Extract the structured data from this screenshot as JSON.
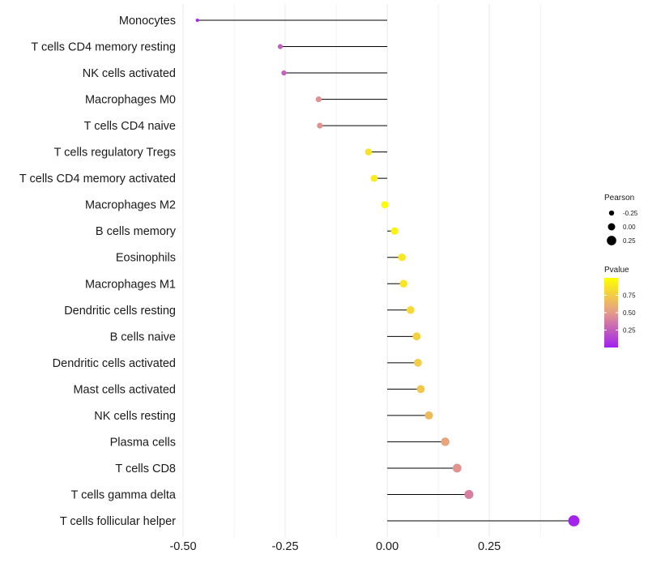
{
  "chart_data": {
    "type": "lollipop",
    "title": "",
    "xlabel": "",
    "ylabel": "",
    "xlim": [
      -0.5,
      0.46
    ],
    "xticks": [
      -0.5,
      -0.25,
      0.0,
      0.25
    ],
    "xtick_labels": [
      "-0.50",
      "-0.25",
      "0.00",
      "0.25"
    ],
    "grid": true,
    "categories": [
      "Monocytes",
      "T cells CD4 memory resting",
      "NK cells activated",
      "Macrophages M0",
      "T cells CD4 naive",
      "T cells regulatory  Tregs",
      "T cells CD4 memory activated",
      "Macrophages M2",
      "B cells memory",
      "Eosinophils",
      "Macrophages M1",
      "Dendritic cells resting",
      "B cells naive",
      "Dendritic cells activated",
      "Mast cells activated",
      "NK cells resting",
      "Plasma cells",
      "T cells CD8",
      "T cells gamma delta",
      "T cells follicular helper"
    ],
    "pearson": [
      -0.465,
      -0.262,
      -0.253,
      -0.168,
      -0.165,
      -0.046,
      -0.032,
      -0.006,
      0.018,
      0.036,
      0.04,
      0.057,
      0.072,
      0.075,
      0.082,
      0.102,
      0.142,
      0.171,
      0.2,
      0.457
    ],
    "pvalue": [
      0.03,
      0.26,
      0.27,
      0.46,
      0.47,
      0.86,
      0.9,
      0.98,
      0.94,
      0.88,
      0.87,
      0.81,
      0.76,
      0.75,
      0.73,
      0.66,
      0.55,
      0.47,
      0.39,
      0.02
    ],
    "size_legend": {
      "title": "Pearson",
      "values": [
        -0.25,
        0.0,
        0.25
      ],
      "labels": [
        "-0.25",
        "0.00",
        "0.25"
      ]
    },
    "color_legend": {
      "title": "Pvalue",
      "range": [
        0.0,
        1.0
      ],
      "ticks": [
        0.25,
        0.5,
        0.75
      ],
      "labels": [
        "0.25",
        "0.50",
        "0.75"
      ],
      "low_color": "#a020f0",
      "mid_color": "#e59a8a",
      "high_color": "#ffff00"
    },
    "stem_color": "#000000",
    "grid_color": "#ebebeb"
  }
}
